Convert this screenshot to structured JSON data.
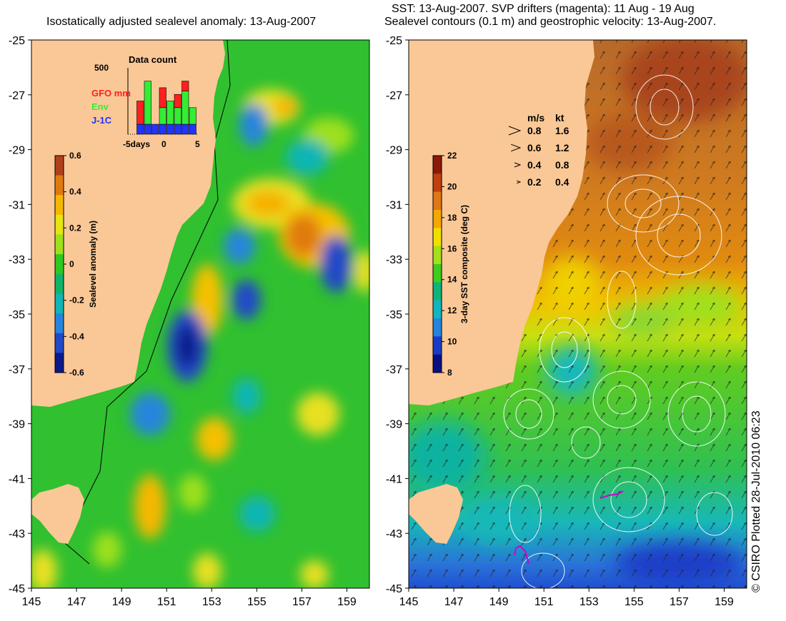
{
  "left_panel": {
    "title": "Isostatically adjusted sealevel anomaly: 13-Aug-2007",
    "colorbar": {
      "label": "Sealevel anomaly (m)",
      "ticks": [
        "0.6",
        "0.4",
        "0.2",
        "0",
        "-0.2",
        "-0.4",
        "-0.6"
      ],
      "colors": [
        "#b0401a",
        "#e07a10",
        "#f5b800",
        "#e5e510",
        "#9ee01a",
        "#2ec81e",
        "#10b36a",
        "#10b5b5",
        "#2585dd",
        "#2048c8",
        "#0a1a8a"
      ]
    },
    "data_count": {
      "title": "Data count",
      "ymax_label": "500",
      "x_labels": [
        "-5days",
        "0",
        "5"
      ],
      "legend": [
        {
          "label": "GFO mm",
          "color": "#ff2020"
        },
        {
          "label": "Env",
          "color": "#33ee33"
        },
        {
          "label": "J-1C",
          "color": "#2233ff"
        }
      ],
      "bars": [
        {
          "day": -4,
          "j1c": 0.0,
          "env": 0.0,
          "gfo": 0.0
        },
        {
          "day": -3,
          "j1c": 0.15,
          "env": 0.0,
          "gfo": 0.35
        },
        {
          "day": -2,
          "j1c": 0.15,
          "env": 0.65,
          "gfo": 0.0
        },
        {
          "day": -1,
          "j1c": 0.15,
          "env": 0.0,
          "gfo": 0.0
        },
        {
          "day": 0,
          "j1c": 0.15,
          "env": 0.25,
          "gfo": 0.3
        },
        {
          "day": 1,
          "j1c": 0.15,
          "env": 0.35,
          "gfo": 0.0
        },
        {
          "day": 2,
          "j1c": 0.15,
          "env": 0.25,
          "gfo": 0.2
        },
        {
          "day": 3,
          "j1c": 0.15,
          "env": 0.5,
          "gfo": 0.15
        },
        {
          "day": 4,
          "j1c": 0.15,
          "env": 0.25,
          "gfo": 0.0
        }
      ]
    }
  },
  "right_panel": {
    "title_line1": "SST: 13-Aug-2007. SVP drifters (magenta): 11 Aug - 19 Aug",
    "title_line2": "Sealevel contours (0.1 m) and geostrophic velocity: 13-Aug-2007.",
    "colorbar": {
      "label": "3-day SST composite (deg C)",
      "ticks": [
        "22",
        "20",
        "18",
        "16",
        "14",
        "12",
        "10",
        "8"
      ],
      "colors": [
        "#8b1a0a",
        "#c04010",
        "#e07818",
        "#f5a800",
        "#f0e000",
        "#a6e01a",
        "#40cc1e",
        "#10b37a",
        "#10b5c0",
        "#2585dd",
        "#1a3cc8",
        "#0a1080"
      ]
    },
    "velocity_legend": {
      "header_ms": "m/s",
      "header_kt": "kt",
      "rows": [
        {
          "ms": "0.8",
          "kt": "1.6"
        },
        {
          "ms": "0.6",
          "kt": "1.2"
        },
        {
          "ms": "0.4",
          "kt": "0.8"
        },
        {
          "ms": "0.2",
          "kt": "0.4"
        }
      ]
    }
  },
  "map": {
    "lat_labels": [
      "-25",
      "-27",
      "-29",
      "-31",
      "-33",
      "-35",
      "-37",
      "-39",
      "-41",
      "-43",
      "-45"
    ],
    "lon_labels": [
      "145",
      "147",
      "149",
      "151",
      "153",
      "155",
      "157",
      "159"
    ],
    "land_color": "#fac896",
    "ocean_color": "#30c030"
  },
  "credit": "© CSIRO Plotted 28-Jul-2010 06:23"
}
